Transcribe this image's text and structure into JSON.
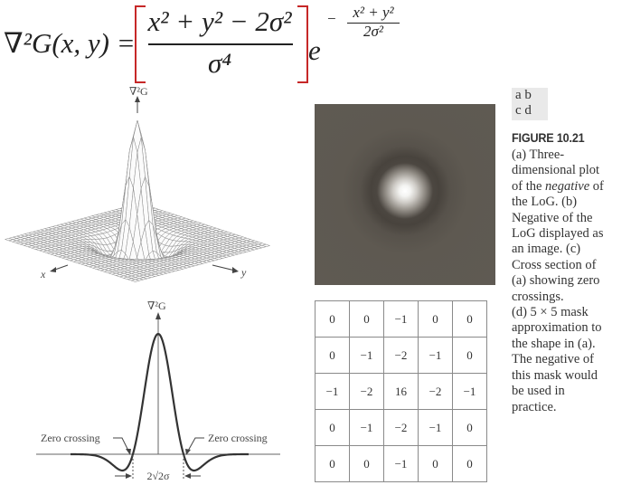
{
  "equation": {
    "lhs": "∇²G(x, y) =",
    "numerator": "x² + y² − 2σ²",
    "denominator": "σ⁴",
    "base": "e",
    "exponent_sign": "−",
    "exponent_numerator": "x² + y²",
    "exponent_denominator": "2σ²",
    "bracket_color": "#c62828"
  },
  "panel_a": {
    "z_label": "∇²G",
    "x_label": "x",
    "y_label": "y"
  },
  "panel_c": {
    "axis_label": "∇²G",
    "left_label": "Zero crossing",
    "right_label": "Zero crossing",
    "width_label": "2√2σ"
  },
  "panel_layout": {
    "row1": "a b",
    "row2": "c d"
  },
  "caption": {
    "title": "FIGURE 10.21",
    "lines": [
      "(a) Three-",
      "dimensional plot",
      "of the negative of",
      "the LoG. (b)",
      "Negative of the",
      "LoG displayed as",
      "an image. (c)",
      "Cross section of",
      "(a) showing zero",
      "crossings.",
      "(d) 5 × 5 mask",
      "approximation to",
      "the shape in (a).",
      "The negative of",
      "this mask would",
      "be used in",
      "practice."
    ]
  },
  "chart_data": {
    "type": "table",
    "rows": [
      [
        "0",
        "0",
        "−1",
        "0",
        "0"
      ],
      [
        "0",
        "−1",
        "−2",
        "−1",
        "0"
      ],
      [
        "−1",
        "−2",
        "16",
        "−2",
        "−1"
      ],
      [
        "0",
        "−1",
        "−2",
        "−1",
        "0"
      ],
      [
        "0",
        "0",
        "−1",
        "0",
        "0"
      ]
    ]
  }
}
